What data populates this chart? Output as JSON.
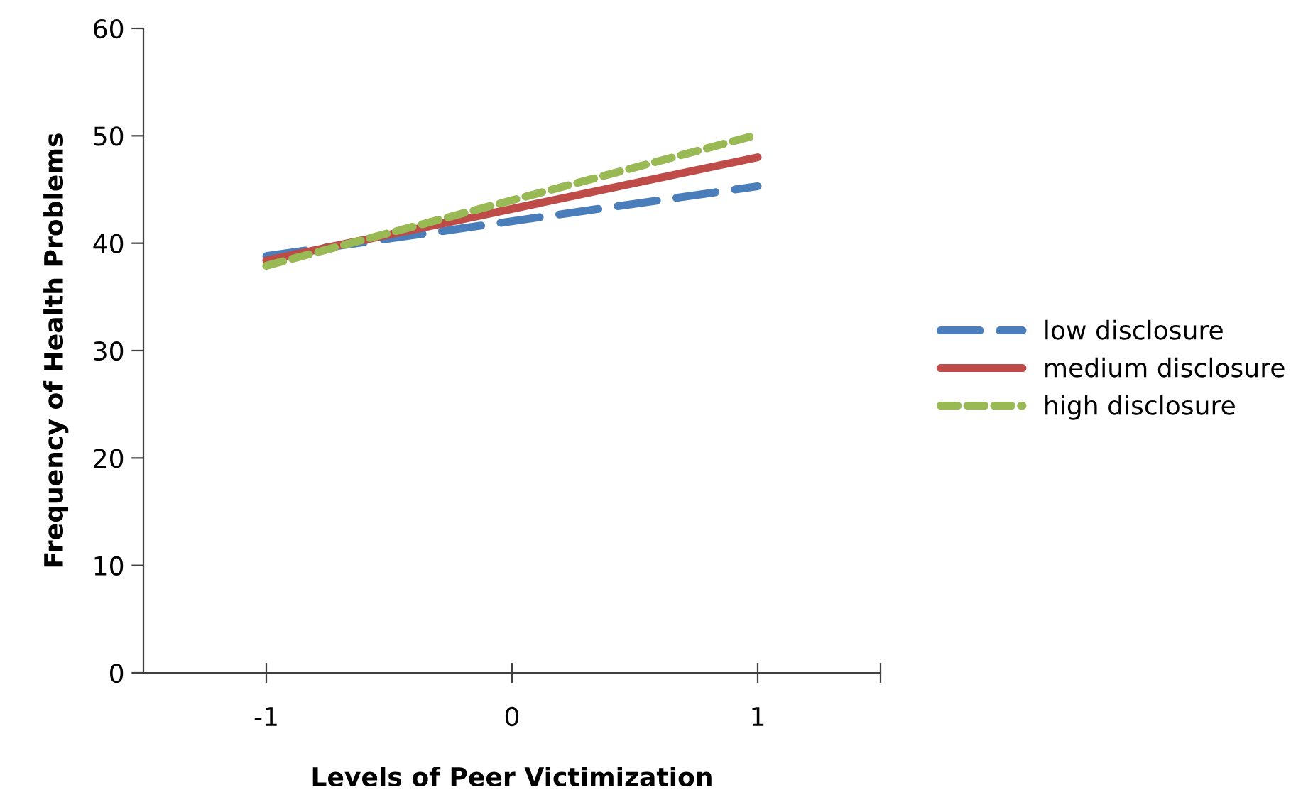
{
  "chart_data": {
    "type": "line",
    "xlabel": "Levels of Peer Victimization",
    "ylabel": "Frequency of Health Problems",
    "x": [
      -1,
      1
    ],
    "xlim": [
      -1.5,
      1.5
    ],
    "xticks": [
      -1,
      0,
      1,
      {
        "value": 1.5,
        "label": null
      }
    ],
    "ylim": [
      0,
      60
    ],
    "yticks": [
      0,
      10,
      20,
      30,
      40,
      50,
      60
    ],
    "grid": false,
    "legend": "right",
    "marker": "none",
    "series": [
      {
        "name": "low disclosure",
        "color": "#4a7ebb",
        "line_style": "dashed",
        "values": [
          38.8,
          45.3
        ]
      },
      {
        "name": "medium disclosure",
        "color": "#be4b48",
        "line_style": "solid",
        "values": [
          38.4,
          48.0
        ]
      },
      {
        "name": "high disclosure",
        "color": "#98b954",
        "line_style": "dotted",
        "values": [
          37.9,
          50.1
        ]
      }
    ]
  }
}
